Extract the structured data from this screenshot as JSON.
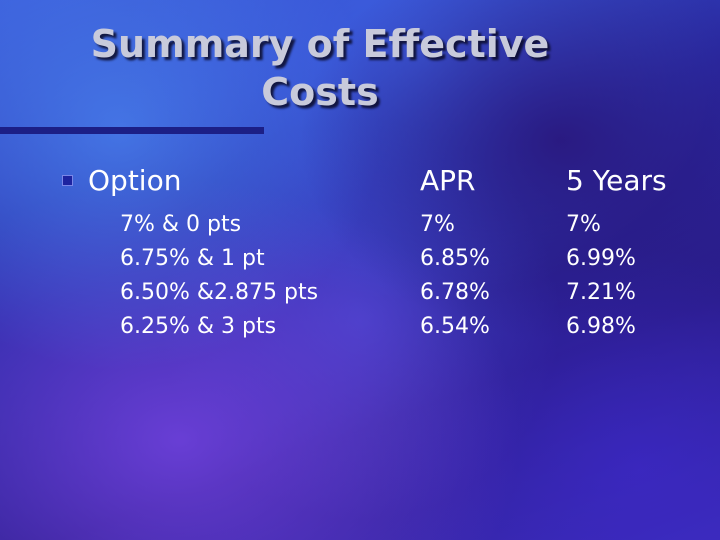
{
  "slide": {
    "title_line1": "Summary of Effective",
    "title_line2": "Costs",
    "headers": {
      "option": "Option",
      "apr": "APR",
      "five_years": "5 Years"
    },
    "rows": [
      {
        "option": "7% & 0 pts",
        "apr": "7%",
        "five_years": "7%"
      },
      {
        "option": "6.75% & 1 pt",
        "apr": "6.85%",
        "five_years": "6.99%"
      },
      {
        "option": "6.50% &2.875 pts",
        "apr": "6.78%",
        "five_years": "7.21%"
      },
      {
        "option": "6.25% & 3 pts",
        "apr": "6.54%",
        "five_years": "6.98%"
      }
    ]
  },
  "colors": {
    "background": "#2a2ca6",
    "title_text": "#c8cadb",
    "body_text": "#ffffff",
    "rule_and_bullet": "#1c1f86"
  },
  "icons": {
    "bullet": "square-bullet-icon"
  }
}
